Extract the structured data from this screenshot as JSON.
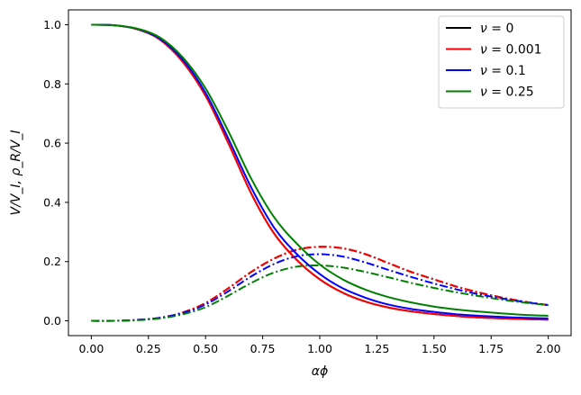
{
  "chart_data": {
    "type": "line",
    "title": "",
    "xlabel": "αϕ",
    "ylabel": "V/V_I, ρ_R/V_I",
    "xlim": [
      -0.1,
      2.1
    ],
    "ylim": [
      -0.05,
      1.05
    ],
    "xticks": [
      "0.00",
      "0.25",
      "0.50",
      "0.75",
      "1.00",
      "1.25",
      "1.50",
      "1.75",
      "2.00"
    ],
    "yticks": [
      "0.0",
      "0.2",
      "0.4",
      "0.6",
      "0.8",
      "1.0"
    ],
    "grid": false,
    "legend_position": "top-right",
    "legend": [
      {
        "label_prefix": "ν",
        "label_value": "0",
        "color": "#000000"
      },
      {
        "label_prefix": "ν",
        "label_value": "0.001",
        "color": "#ff0000"
      },
      {
        "label_prefix": "ν",
        "label_value": "0.1",
        "color": "#0000ff"
      },
      {
        "label_prefix": "ν",
        "label_value": "0.25",
        "color": "#008000"
      }
    ],
    "series": [
      {
        "color": "#000000",
        "style": "solid",
        "x": [
          0,
          0.1,
          0.2,
          0.3,
          0.4,
          0.5,
          0.6,
          0.7,
          0.8,
          0.9,
          1.0,
          1.1,
          1.2,
          1.3,
          1.4,
          1.5,
          1.6,
          1.7,
          1.8,
          1.9,
          2.0
        ],
        "y": [
          1.0,
          0.998,
          0.985,
          0.95,
          0.875,
          0.76,
          0.6,
          0.43,
          0.295,
          0.205,
          0.14,
          0.095,
          0.065,
          0.045,
          0.032,
          0.023,
          0.016,
          0.011,
          0.008,
          0.006,
          0.004
        ]
      },
      {
        "color": "#000000",
        "style": "dashdot",
        "x": [
          0,
          0.1,
          0.2,
          0.3,
          0.4,
          0.5,
          0.6,
          0.7,
          0.8,
          0.9,
          1.0,
          1.1,
          1.2,
          1.3,
          1.4,
          1.5,
          1.6,
          1.7,
          1.8,
          1.9,
          2.0
        ],
        "y": [
          0,
          0.0,
          0.003,
          0.01,
          0.028,
          0.06,
          0.11,
          0.165,
          0.21,
          0.24,
          0.25,
          0.245,
          0.225,
          0.195,
          0.165,
          0.14,
          0.115,
          0.095,
          0.078,
          0.064,
          0.053
        ]
      },
      {
        "color": "#ff0000",
        "style": "solid",
        "x": [
          0,
          0.1,
          0.2,
          0.3,
          0.4,
          0.5,
          0.6,
          0.7,
          0.8,
          0.9,
          1.0,
          1.1,
          1.2,
          1.3,
          1.4,
          1.5,
          1.6,
          1.7,
          1.8,
          1.9,
          2.0
        ],
        "y": [
          1.0,
          0.998,
          0.985,
          0.95,
          0.875,
          0.76,
          0.6,
          0.43,
          0.295,
          0.205,
          0.14,
          0.095,
          0.065,
          0.045,
          0.032,
          0.023,
          0.016,
          0.011,
          0.008,
          0.006,
          0.004
        ]
      },
      {
        "color": "#ff0000",
        "style": "dashdot",
        "x": [
          0,
          0.1,
          0.2,
          0.3,
          0.4,
          0.5,
          0.6,
          0.7,
          0.8,
          0.9,
          1.0,
          1.1,
          1.2,
          1.3,
          1.4,
          1.5,
          1.6,
          1.7,
          1.8,
          1.9,
          2.0
        ],
        "y": [
          0,
          0.0,
          0.003,
          0.01,
          0.028,
          0.06,
          0.11,
          0.165,
          0.21,
          0.24,
          0.25,
          0.245,
          0.225,
          0.195,
          0.165,
          0.14,
          0.115,
          0.095,
          0.078,
          0.064,
          0.053
        ]
      },
      {
        "color": "#0000ff",
        "style": "solid",
        "x": [
          0,
          0.1,
          0.2,
          0.3,
          0.4,
          0.5,
          0.6,
          0.7,
          0.8,
          0.9,
          1.0,
          1.1,
          1.2,
          1.3,
          1.4,
          1.5,
          1.6,
          1.7,
          1.8,
          1.9,
          2.0
        ],
        "y": [
          1.0,
          0.998,
          0.986,
          0.953,
          0.882,
          0.77,
          0.615,
          0.45,
          0.315,
          0.225,
          0.158,
          0.11,
          0.078,
          0.055,
          0.04,
          0.03,
          0.022,
          0.017,
          0.013,
          0.01,
          0.008
        ]
      },
      {
        "color": "#0000ff",
        "style": "dashdot",
        "x": [
          0,
          0.1,
          0.2,
          0.3,
          0.4,
          0.5,
          0.6,
          0.7,
          0.8,
          0.9,
          1.0,
          1.1,
          1.2,
          1.3,
          1.4,
          1.5,
          1.6,
          1.7,
          1.8,
          1.9,
          2.0
        ],
        "y": [
          0,
          0.0,
          0.003,
          0.01,
          0.026,
          0.055,
          0.1,
          0.15,
          0.192,
          0.218,
          0.225,
          0.217,
          0.197,
          0.172,
          0.148,
          0.126,
          0.106,
          0.089,
          0.075,
          0.063,
          0.053
        ]
      },
      {
        "color": "#008000",
        "style": "solid",
        "x": [
          0,
          0.1,
          0.2,
          0.3,
          0.4,
          0.5,
          0.6,
          0.7,
          0.8,
          0.9,
          1.0,
          1.1,
          1.2,
          1.3,
          1.4,
          1.5,
          1.6,
          1.7,
          1.8,
          1.9,
          2.0
        ],
        "y": [
          1.0,
          0.998,
          0.987,
          0.957,
          0.89,
          0.785,
          0.64,
          0.48,
          0.35,
          0.26,
          0.19,
          0.14,
          0.105,
          0.08,
          0.062,
          0.048,
          0.038,
          0.031,
          0.025,
          0.02,
          0.017
        ]
      },
      {
        "color": "#008000",
        "style": "dashdot",
        "x": [
          0,
          0.1,
          0.2,
          0.3,
          0.4,
          0.5,
          0.6,
          0.7,
          0.8,
          0.9,
          1.0,
          1.1,
          1.2,
          1.3,
          1.4,
          1.5,
          1.6,
          1.7,
          1.8,
          1.9,
          2.0
        ],
        "y": [
          0,
          0.0,
          0.002,
          0.008,
          0.022,
          0.046,
          0.085,
          0.128,
          0.163,
          0.183,
          0.187,
          0.18,
          0.165,
          0.147,
          0.128,
          0.111,
          0.096,
          0.083,
          0.071,
          0.061,
          0.053
        ]
      }
    ]
  }
}
